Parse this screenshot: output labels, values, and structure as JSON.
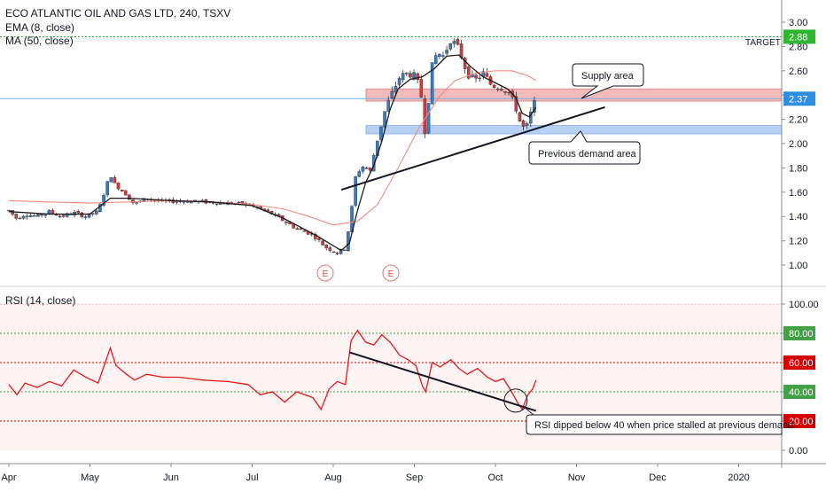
{
  "legend": {
    "symbol_line": "ECO ATLANTIC OIL AND GAS LTD, 240, TSXV",
    "ema_line": "EMA (8, close)",
    "ma_line": "MA (50, close)",
    "rsi_line": "RSI (14, close)"
  },
  "annotations": {
    "supply": "Supply area",
    "demand": "Previous demand area",
    "rsi_note": "RSI dipped below 40 when price stalled at previous demand",
    "target_label": "TARGET",
    "earnings_marker": "E"
  },
  "colors": {
    "up": "#3a7bbf",
    "down": "#d23a3a",
    "ema": "#1a1a1a",
    "ma": "#f28b82",
    "rsi": "#e31a1a",
    "supply_zone": "#f2aeb0",
    "demand_zone": "#a9c8f2",
    "target_line": "#2fb52f",
    "last_price_badge": "#2f8ee0",
    "target_badge": "#2fb52f",
    "rsi_high_badge": "#d40000",
    "rsi_mid_badge": "#43a047"
  },
  "chart_data": [
    {
      "type": "candlestick",
      "title": "ECO ATLANTIC OIL AND GAS LTD, 240, TSXV",
      "x_axis": {
        "labels": [
          "Apr",
          "May",
          "Jun",
          "Jul",
          "Aug",
          "Sep",
          "Oct",
          "Nov",
          "Dec",
          "2020"
        ],
        "label_positions_month_index": [
          0,
          1,
          2,
          3,
          4,
          5,
          6,
          7,
          8,
          9
        ]
      },
      "y_axis": {
        "ticks": [
          "3.00",
          "2.80",
          "2.60",
          "2.40",
          "2.20",
          "2.00",
          "1.80",
          "1.60",
          "1.40",
          "1.20",
          "1.00"
        ],
        "range": [
          0.84,
          3.06
        ]
      },
      "price_badges": {
        "last": "2.37",
        "target": "2.88"
      },
      "levels": {
        "target": 2.88,
        "last_price": 2.37
      },
      "zones": {
        "supply": [
          2.35,
          2.45
        ],
        "demand": [
          2.08,
          2.15
        ]
      },
      "trendline": {
        "from": [
          4.1,
          1.62
        ],
        "to": [
          7.35,
          2.3
        ]
      },
      "earnings_month_index": [
        3.95,
        4.7
      ],
      "series": [
        {
          "name": "EMA (8, close)",
          "style": "line"
        },
        {
          "name": "MA (50, close)",
          "style": "line"
        }
      ],
      "price_path": [
        [
          0.0,
          1.45
        ],
        [
          0.1,
          1.38
        ],
        [
          0.2,
          1.42
        ],
        [
          0.35,
          1.4
        ],
        [
          0.5,
          1.44
        ],
        [
          0.65,
          1.4
        ],
        [
          0.8,
          1.43
        ],
        [
          0.95,
          1.4
        ],
        [
          1.1,
          1.44
        ],
        [
          1.25,
          1.75
        ],
        [
          1.3,
          1.67
        ],
        [
          1.45,
          1.58
        ],
        [
          1.55,
          1.5
        ],
        [
          1.7,
          1.55
        ],
        [
          1.9,
          1.52
        ],
        [
          2.1,
          1.53
        ],
        [
          2.4,
          1.52
        ],
        [
          2.7,
          1.51
        ],
        [
          2.95,
          1.5
        ],
        [
          3.1,
          1.46
        ],
        [
          3.25,
          1.42
        ],
        [
          3.4,
          1.36
        ],
        [
          3.55,
          1.3
        ],
        [
          3.75,
          1.25
        ],
        [
          3.9,
          1.15
        ],
        [
          4.05,
          1.1
        ],
        [
          4.15,
          1.14
        ],
        [
          4.22,
          1.42
        ],
        [
          4.28,
          1.75
        ],
        [
          4.38,
          1.82
        ],
        [
          4.45,
          1.76
        ],
        [
          4.55,
          2.05
        ],
        [
          4.65,
          2.3
        ],
        [
          4.75,
          2.45
        ],
        [
          4.82,
          2.55
        ],
        [
          4.92,
          2.58
        ],
        [
          5.02,
          2.55
        ],
        [
          5.1,
          2.35
        ],
        [
          5.14,
          2.03
        ],
        [
          5.2,
          2.6
        ],
        [
          5.28,
          2.75
        ],
        [
          5.36,
          2.72
        ],
        [
          5.45,
          2.86
        ],
        [
          5.55,
          2.78
        ],
        [
          5.65,
          2.58
        ],
        [
          5.75,
          2.52
        ],
        [
          5.85,
          2.58
        ],
        [
          5.95,
          2.48
        ],
        [
          6.05,
          2.47
        ],
        [
          6.15,
          2.44
        ],
        [
          6.25,
          2.3
        ],
        [
          6.32,
          2.14
        ],
        [
          6.38,
          2.12
        ],
        [
          6.45,
          2.28
        ],
        [
          6.5,
          2.37
        ]
      ],
      "ema_path": [
        [
          0.0,
          1.44
        ],
        [
          0.5,
          1.42
        ],
        [
          1.0,
          1.42
        ],
        [
          1.25,
          1.55
        ],
        [
          1.5,
          1.55
        ],
        [
          2.0,
          1.53
        ],
        [
          2.5,
          1.52
        ],
        [
          3.0,
          1.49
        ],
        [
          3.4,
          1.38
        ],
        [
          3.8,
          1.24
        ],
        [
          4.1,
          1.12
        ],
        [
          4.2,
          1.18
        ],
        [
          4.3,
          1.45
        ],
        [
          4.4,
          1.68
        ],
        [
          4.5,
          1.82
        ],
        [
          4.6,
          2.02
        ],
        [
          4.7,
          2.28
        ],
        [
          4.8,
          2.45
        ],
        [
          4.95,
          2.53
        ],
        [
          5.1,
          2.55
        ],
        [
          5.25,
          2.62
        ],
        [
          5.4,
          2.72
        ],
        [
          5.55,
          2.73
        ],
        [
          5.7,
          2.63
        ],
        [
          5.85,
          2.55
        ],
        [
          6.0,
          2.5
        ],
        [
          6.15,
          2.45
        ],
        [
          6.25,
          2.38
        ],
        [
          6.33,
          2.25
        ],
        [
          6.42,
          2.22
        ],
        [
          6.5,
          2.3
        ]
      ],
      "ma_path": [
        [
          0.0,
          1.53
        ],
        [
          0.5,
          1.52
        ],
        [
          1.0,
          1.51
        ],
        [
          1.5,
          1.52
        ],
        [
          2.0,
          1.53
        ],
        [
          2.5,
          1.52
        ],
        [
          3.0,
          1.5
        ],
        [
          3.4,
          1.46
        ],
        [
          3.7,
          1.4
        ],
        [
          4.0,
          1.33
        ],
        [
          4.3,
          1.36
        ],
        [
          4.55,
          1.5
        ],
        [
          4.8,
          1.8
        ],
        [
          5.05,
          2.12
        ],
        [
          5.3,
          2.38
        ],
        [
          5.5,
          2.52
        ],
        [
          5.75,
          2.58
        ],
        [
          6.0,
          2.6
        ],
        [
          6.2,
          2.6
        ],
        [
          6.4,
          2.56
        ],
        [
          6.5,
          2.52
        ]
      ]
    },
    {
      "type": "line",
      "title": "RSI (14, close)",
      "y_axis": {
        "ticks": [
          "100.00",
          "80.00",
          "60.00",
          "40.00",
          "20.00",
          "0.00"
        ],
        "range": [
          -5,
          105
        ]
      },
      "badges": {
        "r80": "80.00",
        "r60": "60.00",
        "r40": "40.00",
        "r20": "20.00"
      },
      "levels": [
        80,
        60,
        40,
        20
      ],
      "trendline": {
        "from": [
          4.2,
          67
        ],
        "to": [
          6.5,
          27
        ]
      },
      "circle_at": [
        6.25,
        34
      ],
      "series": [
        {
          "name": "RSI (14, close)",
          "values": [
            [
              0.0,
              45
            ],
            [
              0.1,
              38
            ],
            [
              0.2,
              46
            ],
            [
              0.35,
              43
            ],
            [
              0.5,
              47
            ],
            [
              0.65,
              44
            ],
            [
              0.8,
              55
            ],
            [
              0.95,
              50
            ],
            [
              1.1,
              46
            ],
            [
              1.25,
              70
            ],
            [
              1.32,
              58
            ],
            [
              1.45,
              52
            ],
            [
              1.55,
              48
            ],
            [
              1.7,
              52
            ],
            [
              1.9,
              50
            ],
            [
              2.1,
              50
            ],
            [
              2.4,
              48
            ],
            [
              2.7,
              47
            ],
            [
              2.95,
              45
            ],
            [
              3.1,
              38
            ],
            [
              3.25,
              40
            ],
            [
              3.4,
              33
            ],
            [
              3.55,
              40
            ],
            [
              3.75,
              36
            ],
            [
              3.85,
              28
            ],
            [
              3.95,
              42
            ],
            [
              4.05,
              47
            ],
            [
              4.15,
              45
            ],
            [
              4.22,
              75
            ],
            [
              4.3,
              82
            ],
            [
              4.4,
              74
            ],
            [
              4.5,
              72
            ],
            [
              4.6,
              79
            ],
            [
              4.7,
              74
            ],
            [
              4.82,
              65
            ],
            [
              4.92,
              62
            ],
            [
              5.02,
              58
            ],
            [
              5.1,
              44
            ],
            [
              5.14,
              40
            ],
            [
              5.22,
              60
            ],
            [
              5.32,
              57
            ],
            [
              5.45,
              62
            ],
            [
              5.55,
              56
            ],
            [
              5.65,
              52
            ],
            [
              5.78,
              56
            ],
            [
              5.9,
              50
            ],
            [
              6.0,
              47
            ],
            [
              6.1,
              49
            ],
            [
              6.2,
              40
            ],
            [
              6.28,
              32
            ],
            [
              6.33,
              28
            ],
            [
              6.4,
              38
            ],
            [
              6.46,
              42
            ],
            [
              6.5,
              48
            ]
          ]
        }
      ]
    }
  ]
}
